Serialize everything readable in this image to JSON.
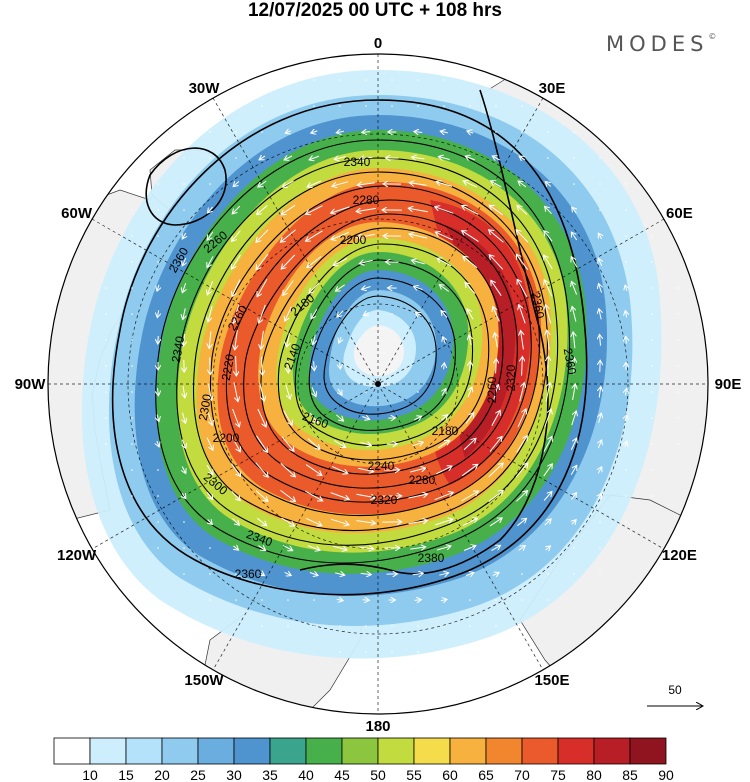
{
  "header": {
    "title": "12/07/2025  00 UTC  + 108 hrs",
    "brand": "MODES"
  },
  "map": {
    "projection": "polar stereographic",
    "longitude_labels": [
      {
        "text": "0",
        "deg": 0
      },
      {
        "text": "30E",
        "deg": 30
      },
      {
        "text": "60E",
        "deg": 60
      },
      {
        "text": "90E",
        "deg": 90
      },
      {
        "text": "120E",
        "deg": 120
      },
      {
        "text": "150E",
        "deg": 150
      },
      {
        "text": "180",
        "deg": 180
      },
      {
        "text": "150W",
        "deg": 210
      },
      {
        "text": "120W",
        "deg": 240
      },
      {
        "text": "90W",
        "deg": 270
      },
      {
        "text": "60W",
        "deg": 300
      },
      {
        "text": "30W",
        "deg": 330
      }
    ],
    "contour_labels": [
      "2340",
      "2280",
      "2200",
      "2180",
      "2140",
      "2160",
      "2200",
      "2240",
      "2320",
      "2280",
      "2380",
      "2360",
      "2360",
      "2320",
      "2300",
      "2300",
      "2260",
      "2220",
      "2360",
      "2340",
      "2360",
      "2260",
      "2340",
      "2180",
      "2260"
    ],
    "vector_reference": "50",
    "colors": {
      "land": "#f0f0f0",
      "shading": [
        "#ffffff",
        "#cdeefc",
        "#b4e2fa",
        "#8fcbee",
        "#6aaee0",
        "#4f94cf",
        "#3aa58c",
        "#47b04b",
        "#8cc63f",
        "#c2db3f",
        "#f4dc4a",
        "#f6b13e",
        "#f2862e",
        "#ea5a2a",
        "#d72e2a",
        "#b81e26",
        "#8f1420"
      ]
    }
  },
  "colorbar": {
    "ticks": [
      "10",
      "15",
      "20",
      "25",
      "30",
      "35",
      "40",
      "45",
      "50",
      "55",
      "60",
      "65",
      "70",
      "75",
      "80",
      "85",
      "90"
    ]
  }
}
